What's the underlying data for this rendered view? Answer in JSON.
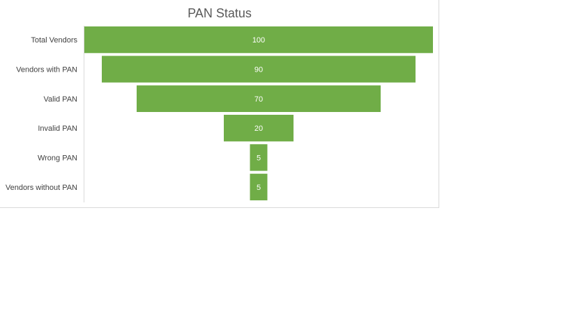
{
  "chart_data": {
    "type": "bar",
    "subtype": "funnel",
    "title": "PAN Status",
    "categories": [
      "Total Vendors",
      "Vendors with PAN",
      "Valid PAN",
      "Invalid PAN",
      "Wrong PAN",
      "Vendors without PAN"
    ],
    "values": [
      100,
      90,
      70,
      20,
      5,
      5
    ],
    "data_labels": [
      "100",
      "90",
      "70",
      "20",
      "5",
      "5"
    ],
    "bar_color": "#70ad47",
    "value_label_color": "#ffffff",
    "axis_color": "#d9d9d9",
    "max_value": 100,
    "grid": false,
    "legend": "none"
  }
}
